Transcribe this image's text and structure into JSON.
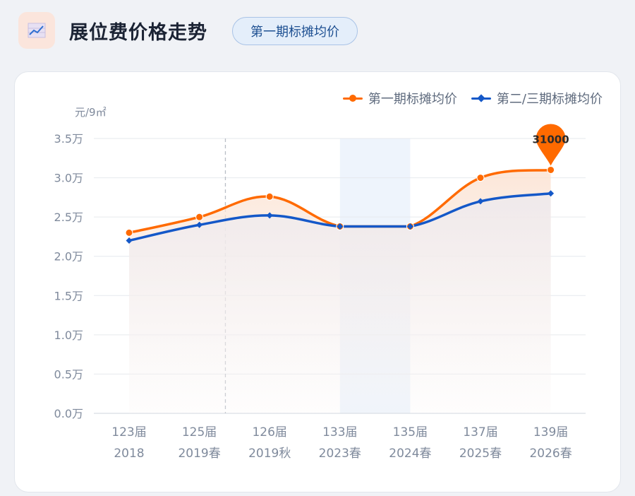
{
  "header": {
    "title": "展位费价格走势",
    "badge": "第一期标摊均价",
    "icon": "line-chart-icon"
  },
  "colors": {
    "series1": "#ff6a00",
    "series2": "#1458c8",
    "highlight_band": "#eef4fc",
    "grid": "#e6e9ee",
    "axis_text": "#7f8a9c"
  },
  "chart_data": {
    "type": "line",
    "unit_label": "元/9㎡",
    "categories": [
      [
        "123届",
        "2018"
      ],
      [
        "125届",
        "2019春"
      ],
      [
        "126届",
        "2019秋"
      ],
      [
        "133届",
        "2023春"
      ],
      [
        "135届",
        "2024春"
      ],
      [
        "137届",
        "2025春"
      ],
      [
        "139届",
        "2026春"
      ]
    ],
    "yticks": [
      "0.0万",
      "0.5万",
      "1.0万",
      "1.5万",
      "2.0万",
      "2.5万",
      "3.0万",
      "3.5万"
    ],
    "ylim": [
      0,
      35000
    ],
    "grid": true,
    "legend_position": "top-right",
    "series": [
      {
        "name": "第一期标摊均价",
        "values": [
          23000,
          25000,
          27600,
          23800,
          23800,
          30000,
          31000
        ]
      },
      {
        "name": "第二/三期标摊均价",
        "values": [
          22000,
          24000,
          25200,
          23800,
          23800,
          27000,
          28000
        ]
      }
    ],
    "marker_label": "31000",
    "dashed_marker_between": [
      "125届",
      "126届"
    ],
    "highlight_range": [
      "133届",
      "135届"
    ]
  }
}
